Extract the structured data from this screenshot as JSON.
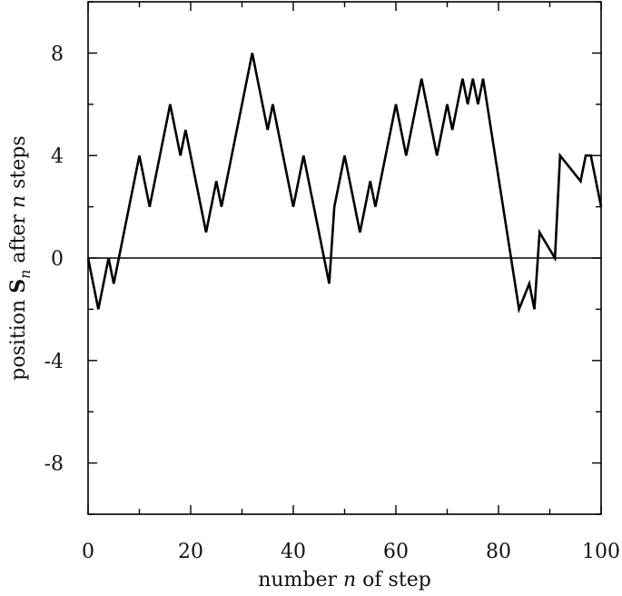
{
  "chart_data": {
    "type": "line",
    "xlabel": {
      "before": "number ",
      "var": "n",
      "after": " of step"
    },
    "ylabel": {
      "before": "position ",
      "bold": "S",
      "sub": "n",
      "middle": " after ",
      "var": "n",
      "after": " steps"
    },
    "xlim": [
      0,
      100
    ],
    "ylim": [
      -10,
      10
    ],
    "x_ticks": [
      0,
      20,
      40,
      60,
      80,
      100
    ],
    "x_tick_labels": [
      "0",
      "20",
      "40",
      "60",
      "80",
      "100"
    ],
    "y_ticks": [
      8,
      4,
      0,
      -4,
      -8
    ],
    "y_tick_labels": [
      "8",
      "4",
      "0",
      "-4",
      "-8"
    ],
    "reference_line_y": 0,
    "grid": false,
    "series": [
      {
        "x": [
          0,
          2,
          4,
          5,
          10,
          12,
          16,
          18,
          19,
          23,
          25,
          26,
          32,
          35,
          36,
          40,
          42,
          47,
          48,
          50,
          53,
          55,
          56,
          60,
          62,
          65,
          68,
          70,
          71,
          73,
          74,
          75,
          76,
          77,
          84,
          86,
          87,
          88,
          91,
          92,
          96,
          97,
          98,
          100
        ],
        "y": [
          0,
          -2,
          0,
          -1,
          4,
          2,
          6,
          4,
          5,
          1,
          3,
          2,
          8,
          5,
          6,
          2,
          4,
          -1,
          2,
          4,
          1,
          3,
          2,
          6,
          4,
          7,
          4,
          6,
          5,
          7,
          6,
          7,
          6,
          7,
          -2,
          -1,
          -2,
          1,
          0,
          4,
          3,
          4,
          4,
          2
        ]
      }
    ]
  }
}
